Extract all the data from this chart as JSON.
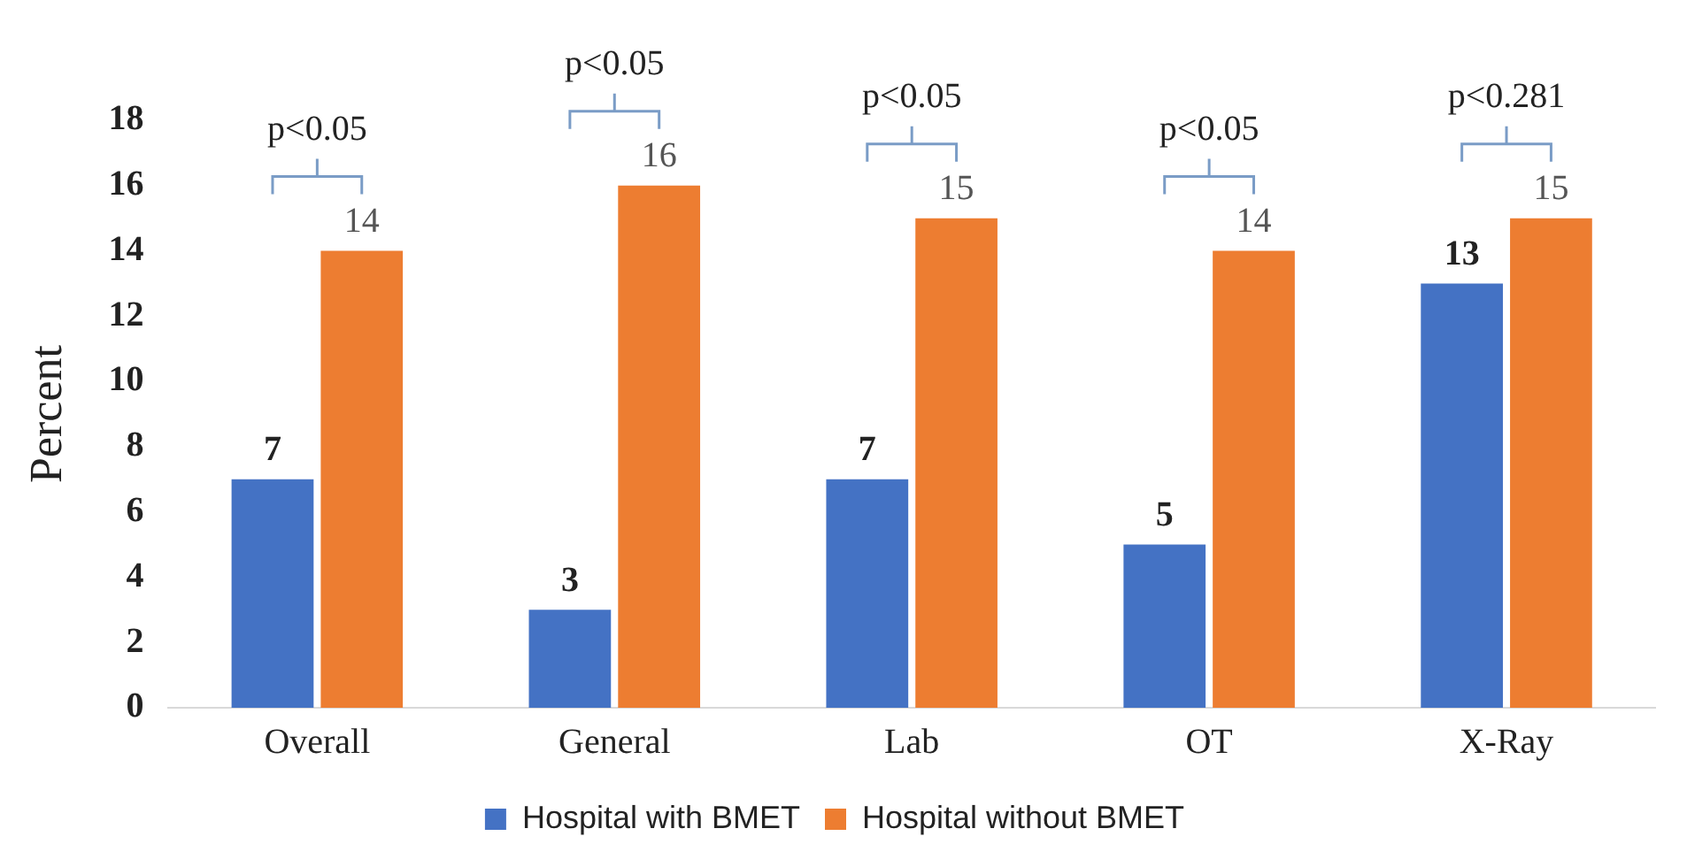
{
  "chart_data": {
    "type": "bar",
    "ylabel": "Percent",
    "categories": [
      "Overall",
      "General",
      "Lab",
      "OT",
      "X-Ray"
    ],
    "series": [
      {
        "name": "Hospital with BMET",
        "color": "#4472c4",
        "values": [
          7,
          3,
          7,
          5,
          13
        ]
      },
      {
        "name": "Hospital without BMET",
        "color": "#ed7d31",
        "values": [
          14,
          16,
          15,
          14,
          15
        ]
      }
    ],
    "ylim": [
      0,
      18
    ],
    "yticks": [
      0,
      2,
      4,
      6,
      8,
      10,
      12,
      14,
      16,
      18
    ],
    "grid": false,
    "legend": "bottom",
    "data_labels": true,
    "annotations": [
      "p<0.05",
      "p<0.05",
      "p<0.05",
      "p<0.05",
      "p<0.281"
    ]
  }
}
